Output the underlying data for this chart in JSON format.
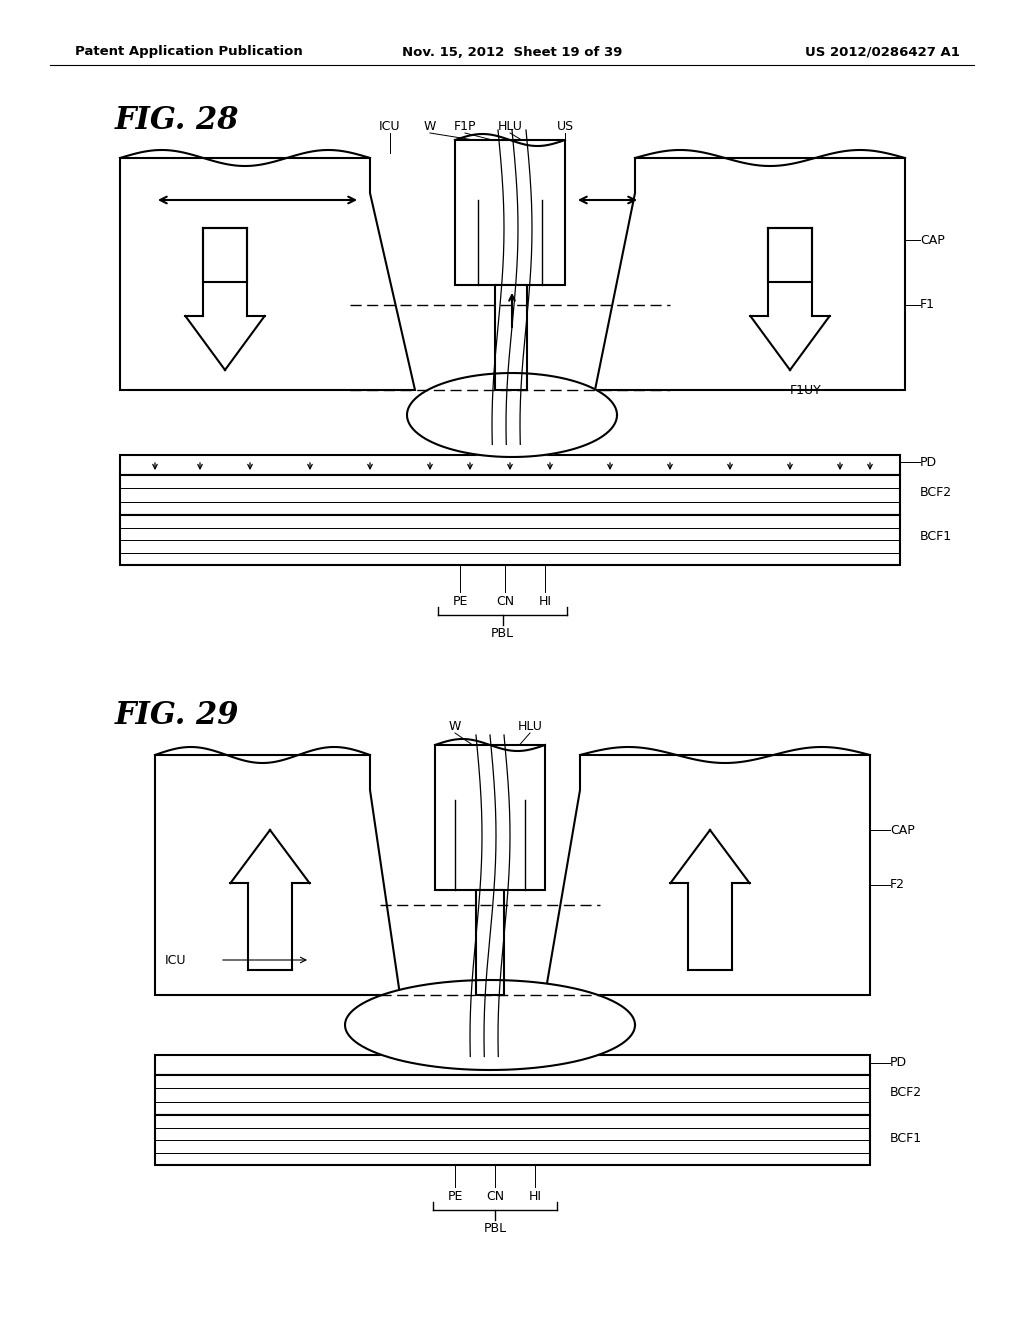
{
  "header_left": "Patent Application Publication",
  "header_mid": "Nov. 15, 2012  Sheet 19 of 39",
  "header_right": "US 2012/0286427 A1",
  "fig28_title": "FIG. 28",
  "fig29_title": "FIG. 29",
  "bg_color": "#ffffff",
  "line_color": "#000000"
}
